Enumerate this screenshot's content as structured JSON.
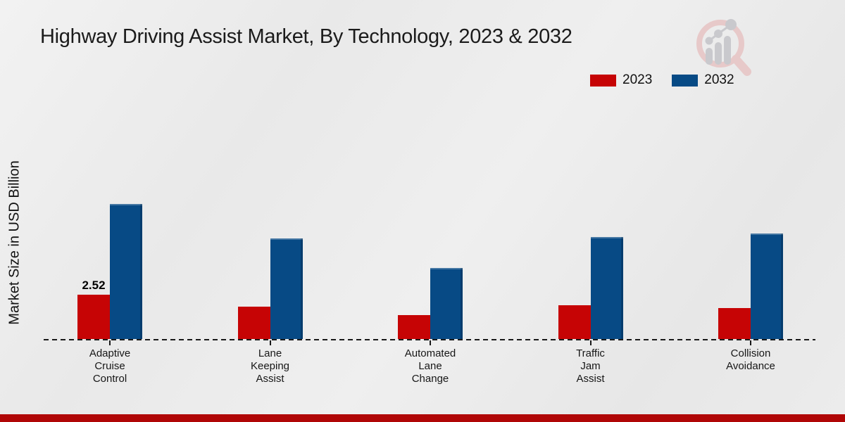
{
  "chart_data": {
    "type": "bar",
    "title": "Highway Driving Assist Market, By Technology, 2023 & 2032",
    "ylabel": "Market Size in USD Billion",
    "xlabel": "",
    "categories": [
      "Adaptive Cruise Control",
      "Lane Keeping Assist",
      "Automated Lane Change",
      "Traffic Jam Assist",
      "Collision Avoidance"
    ],
    "series": [
      {
        "name": "2023",
        "color": "#c60405",
        "values": [
          2.52,
          1.85,
          1.35,
          1.92,
          1.75
        ]
      },
      {
        "name": "2032",
        "color": "#074a85",
        "values": [
          7.66,
          5.72,
          4.04,
          5.78,
          6.0
        ]
      }
    ],
    "point_labels": [
      {
        "series": "2023",
        "category_index": 0,
        "text": "2.52"
      }
    ],
    "ylim": [
      0,
      9.3
    ],
    "grid": false,
    "legend_position": "top-right",
    "baseline_style": "dashed",
    "y_ticks_visible": false
  },
  "colors": {
    "series_2023": "#c60405",
    "series_2032": "#074a85",
    "footer_stripe": "#b00606",
    "background": "#ebebeb",
    "text": "#1b1b1b",
    "watermark_red": "#e7c6c6",
    "watermark_gray": "#c6c6ca"
  },
  "watermark": {
    "name": "magnifier-growth-chart-logo"
  }
}
